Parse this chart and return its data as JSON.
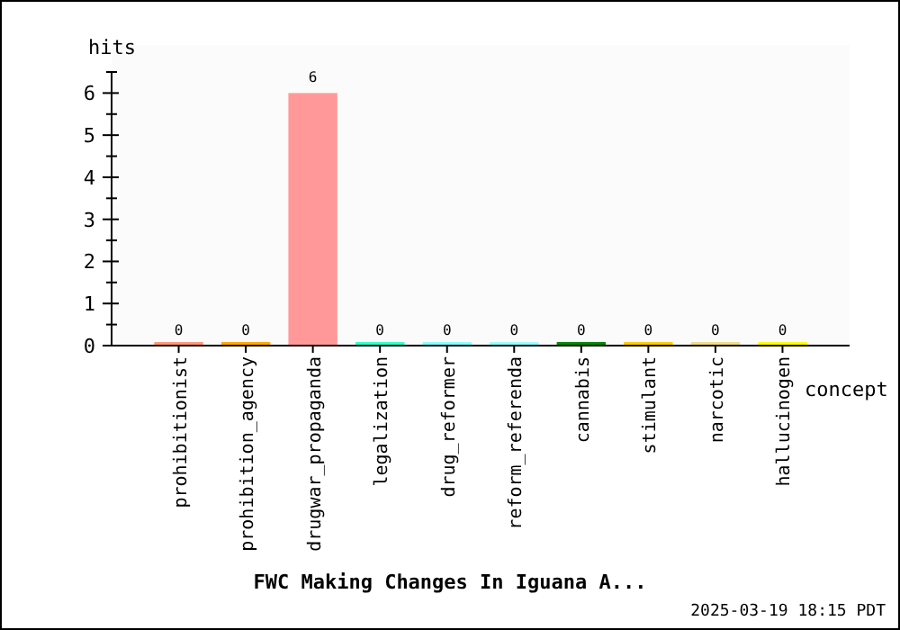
{
  "chart_data": {
    "type": "bar",
    "title": "FWC Making Changes In Iguana A...",
    "xlabel": "concept",
    "ylabel": "hits",
    "categories": [
      "prohibitionist",
      "prohibition_agency",
      "drugwar_propaganda",
      "legalization",
      "drug_reformer",
      "reform_referenda",
      "cannabis",
      "stimulant",
      "narcotic",
      "hallucinogen"
    ],
    "values": [
      0,
      0,
      6,
      0,
      0,
      0,
      0,
      0,
      0,
      0
    ],
    "colors": [
      "#ff9977",
      "#ffaa00",
      "#ff9999",
      "#33ffcc",
      "#88ffff",
      "#99ffff",
      "#008800",
      "#ffcc00",
      "#eedd88",
      "#ffff00"
    ],
    "ylim": [
      0,
      6.5
    ],
    "yticks": [
      0,
      {
        "value": 0.5,
        "label": null
      },
      1,
      {
        "value": 1.5,
        "label": null
      },
      2,
      {
        "value": 2.5,
        "label": null
      },
      3,
      {
        "value": 3.5,
        "label": null
      },
      4,
      {
        "value": 4.5,
        "label": null
      },
      5,
      {
        "value": 5.5,
        "label": null
      },
      6,
      {
        "value": 6.5,
        "label": null
      }
    ],
    "data_labels": true,
    "grid": false,
    "annotations": [
      "2025-03-19 18:15 PDT"
    ]
  }
}
